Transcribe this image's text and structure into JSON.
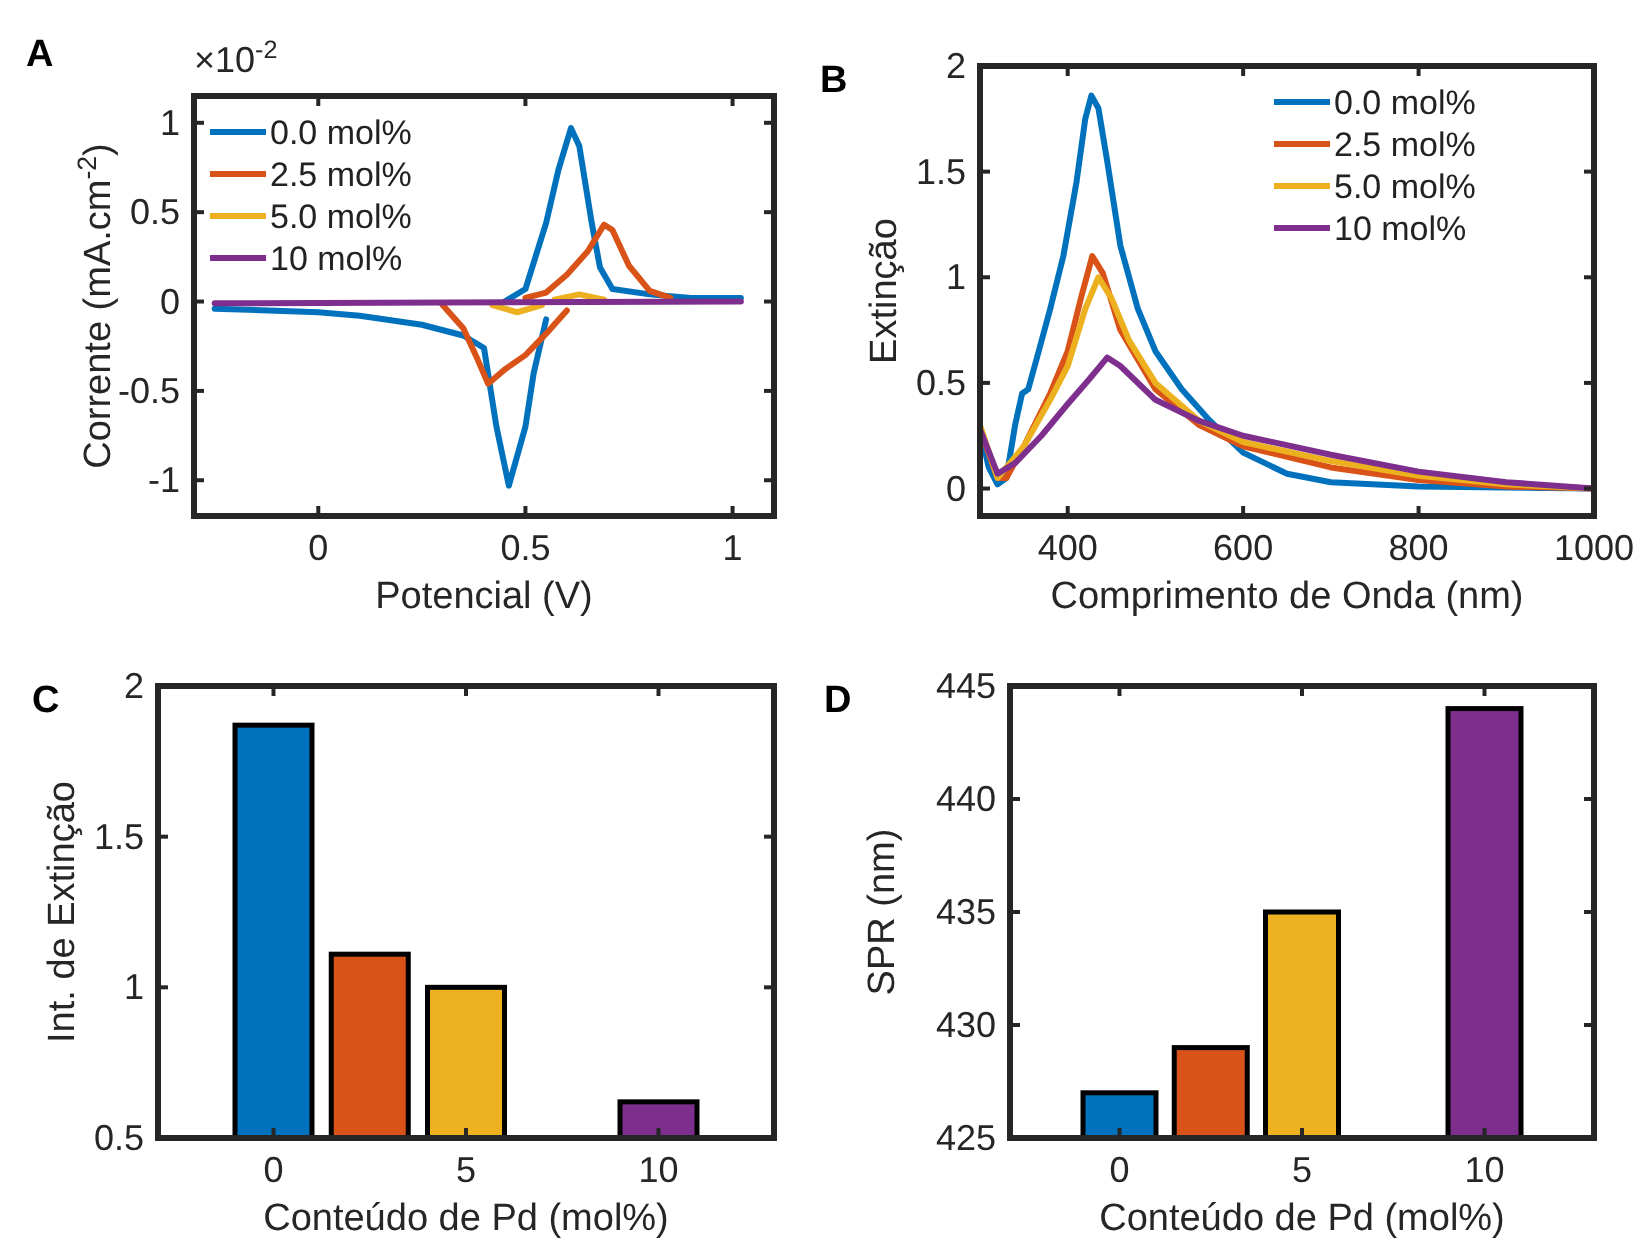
{
  "chart_data": [
    {
      "type": "line",
      "annotations": [
        "A",
        "×10$^{-2}$"
      ],
      "xlabel": "Potencial (V)",
      "ylabel": "Corrente (mA.cm$^{-2}$)",
      "xlim": [
        -0.3,
        1.1
      ],
      "xticks": [
        0,
        0.5,
        1
      ],
      "ylim": [
        -1.2,
        1.15
      ],
      "yticks": [
        -1,
        -0.5,
        0,
        0.5,
        1
      ],
      "legend": "top left",
      "grid": false,
      "series": [
        {
          "name": "0.0 mol%",
          "color": "#0072bd",
          "x": [
            0.45,
            0.5,
            0.55,
            0.58,
            0.61,
            0.63,
            0.66,
            0.68,
            0.71,
            0.8,
            0.9,
            1.02
          ],
          "values": [
            0,
            0.07,
            0.44,
            0.74,
            0.97,
            0.87,
            0.44,
            0.19,
            0.07,
            0.04,
            0.02,
            0.02
          ]
        },
        {
          "color": "#0072bd",
          "x": [
            -0.25,
            0,
            0.1,
            0.25,
            0.35,
            0.4,
            0.43,
            0.46,
            0.5,
            0.52,
            0.55
          ],
          "values": [
            -0.04,
            -0.06,
            -0.08,
            -0.13,
            -0.19,
            -0.26,
            -0.7,
            -1.03,
            -0.7,
            -0.4,
            -0.1
          ]
        },
        {
          "name": "2.5 mol%",
          "color": "#d95319",
          "x": [
            0.5,
            0.55,
            0.6,
            0.65,
            0.69,
            0.71,
            0.75,
            0.8,
            0.85
          ],
          "values": [
            0.02,
            0.05,
            0.15,
            0.28,
            0.43,
            0.4,
            0.2,
            0.06,
            0.02
          ]
        },
        {
          "color": "#d95319",
          "x": [
            0.3,
            0.35,
            0.38,
            0.41,
            0.45,
            0.5,
            0.55,
            0.6
          ],
          "values": [
            -0.02,
            -0.15,
            -0.3,
            -0.46,
            -0.38,
            -0.3,
            -0.18,
            -0.05
          ]
        },
        {
          "name": "5.0 mol%",
          "color": "#edb120",
          "x": [
            0.57,
            0.63,
            0.69
          ],
          "values": [
            0.01,
            0.04,
            0.01
          ]
        },
        {
          "color": "#edb120",
          "x": [
            0.42,
            0.48,
            0.54
          ],
          "values": [
            -0.02,
            -0.06,
            -0.02
          ]
        },
        {
          "name": "10 mol%",
          "color": "#7e2f8e",
          "x": [
            -0.25,
            1.02
          ],
          "values": [
            -0.01,
            0
          ]
        }
      ]
    },
    {
      "type": "line",
      "annotations": [
        "B"
      ],
      "xlabel": "Comprimento de Onda (nm)",
      "ylabel": "Extinção",
      "xlim": [
        300,
        1000
      ],
      "xticks": [
        400,
        600,
        800,
        1000
      ],
      "ylim": [
        -0.13,
        2
      ],
      "yticks": [
        0,
        0.5,
        1,
        1.5,
        2
      ],
      "legend": "top right",
      "grid": false,
      "series": [
        {
          "name": "0.0 mol%",
          "color": "#0072bd",
          "x": [
            300,
            310,
            320,
            330,
            340,
            348,
            355,
            365,
            380,
            395,
            410,
            420,
            427,
            435,
            445,
            460,
            480,
            500,
            530,
            560,
            600,
            650,
            700,
            800,
            1000
          ],
          "values": [
            0.28,
            0.1,
            0.02,
            0.05,
            0.3,
            0.45,
            0.47,
            0.62,
            0.85,
            1.1,
            1.45,
            1.75,
            1.86,
            1.8,
            1.55,
            1.15,
            0.85,
            0.65,
            0.47,
            0.33,
            0.17,
            0.07,
            0.03,
            0.01,
            0
          ]
        },
        {
          "name": "2.5 mol%",
          "color": "#d95319",
          "x": [
            300,
            320,
            330,
            350,
            380,
            400,
            415,
            428,
            440,
            460,
            500,
            550,
            600,
            700,
            800,
            900,
            1000
          ],
          "values": [
            0.28,
            0.05,
            0.05,
            0.2,
            0.45,
            0.65,
            0.9,
            1.1,
            1.02,
            0.75,
            0.47,
            0.3,
            0.2,
            0.1,
            0.04,
            0.01,
            0
          ]
        },
        {
          "name": "5.0 mol%",
          "color": "#edb120",
          "x": [
            300,
            320,
            350,
            380,
            400,
            420,
            435,
            450,
            470,
            500,
            550,
            600,
            700,
            800,
            900,
            1000
          ],
          "values": [
            0.3,
            0.05,
            0.2,
            0.42,
            0.58,
            0.85,
            1.0,
            0.9,
            0.7,
            0.5,
            0.32,
            0.22,
            0.13,
            0.06,
            0.02,
            0
          ]
        },
        {
          "name": "10 mol%",
          "color": "#7e2f8e",
          "x": [
            300,
            320,
            340,
            370,
            400,
            425,
            445,
            460,
            500,
            550,
            600,
            700,
            800,
            900,
            1000
          ],
          "values": [
            0.28,
            0.07,
            0.12,
            0.25,
            0.4,
            0.52,
            0.62,
            0.58,
            0.42,
            0.32,
            0.25,
            0.16,
            0.08,
            0.03,
            0
          ]
        }
      ]
    },
    {
      "type": "bar",
      "annotations": [
        "C"
      ],
      "xlabel": "Conteúdo de Pd (mol%)",
      "ylabel": "Int. de Extinção",
      "x": [
        0,
        2.5,
        5,
        10
      ],
      "values": [
        1.87,
        1.11,
        1.0,
        0.62
      ],
      "colors": [
        "#0072bd",
        "#d95319",
        "#edb120",
        "#7e2f8e"
      ],
      "xlim": [
        -3,
        13
      ],
      "xticks": [
        0,
        5,
        10
      ],
      "ylim": [
        0.5,
        2
      ],
      "yticks": [
        0.5,
        1,
        1.5,
        2
      ],
      "grid": false
    },
    {
      "type": "bar",
      "annotations": [
        "D"
      ],
      "xlabel": "Conteúdo de Pd (mol%)",
      "ylabel": "SPR (nm)",
      "x": [
        0,
        2.5,
        5,
        10
      ],
      "values": [
        427,
        429,
        435,
        444
      ],
      "colors": [
        "#0072bd",
        "#d95319",
        "#edb120",
        "#7e2f8e"
      ],
      "xlim": [
        -3,
        13
      ],
      "xticks": [
        0,
        5,
        10
      ],
      "ylim": [
        425,
        445
      ],
      "yticks": [
        425,
        430,
        435,
        440,
        445
      ],
      "grid": false
    }
  ]
}
